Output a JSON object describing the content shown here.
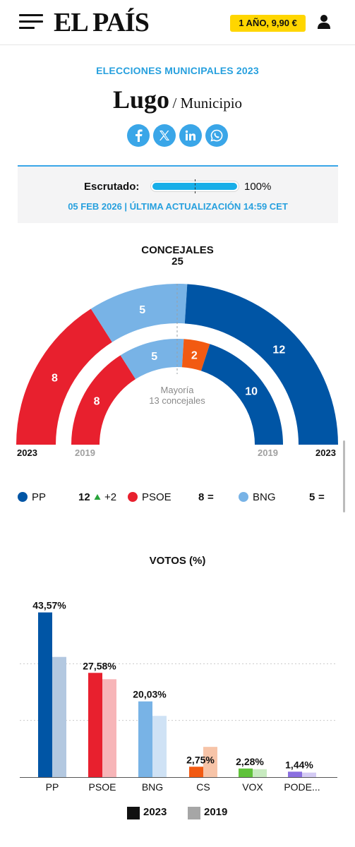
{
  "header": {
    "logo": "EL PAÍS",
    "promo_label": "1 AÑO, 9,90 €",
    "menu_icon": "hamburger-menu-icon",
    "user_icon": "user-icon"
  },
  "page": {
    "kicker": "ELECCIONES MUNICIPALES 2023",
    "title": "Lugo",
    "subtitle": "/ Municipio",
    "share": [
      "facebook-icon",
      "x-icon",
      "linkedin-icon",
      "whatsapp-icon"
    ]
  },
  "scrutiny": {
    "label": "Escrutado:",
    "progress": 1.0,
    "percent_label": "100%",
    "date_label": "05 FEB 2026 | ÚLTIMA ACTUALIZACIÓN 14:59 CET"
  },
  "councillors": {
    "title": "CONCEJALES",
    "total": "25",
    "majority_label": "Mayoría",
    "majority_detail": "13 concejales",
    "year_current": "2023",
    "year_previous": "2019",
    "outer_2023": [
      {
        "party": "PSOE",
        "seats": 8,
        "label": "8",
        "color": "#e8202e"
      },
      {
        "party": "BNG",
        "seats": 5,
        "label": "5",
        "color": "#78b3e6"
      },
      {
        "party": "PP",
        "seats": 12,
        "label": "12",
        "color": "#0055a5"
      }
    ],
    "inner_2019": [
      {
        "party": "PSOE",
        "seats": 8,
        "label": "8",
        "color": "#e8202e"
      },
      {
        "party": "BNG",
        "seats": 5,
        "label": "5",
        "color": "#78b3e6"
      },
      {
        "party": "CS",
        "seats": 2,
        "label": "2",
        "color": "#f25a12"
      },
      {
        "party": "PP",
        "seats": 10,
        "label": "10",
        "color": "#0055a5"
      }
    ],
    "legend": [
      {
        "party": "PP",
        "seats": "12",
        "diff": "+2",
        "diff_icon": "triangle-up-icon",
        "color": "#0055a5"
      },
      {
        "party": "PSOE",
        "seats": "8",
        "diff": "=",
        "color": "#e8202e"
      },
      {
        "party": "BNG",
        "seats": "5",
        "diff": "=",
        "color": "#78b3e6"
      }
    ]
  },
  "chart_data": {
    "type": "bar",
    "title": "VOTOS (%)",
    "categories": [
      "PP",
      "PSOE",
      "BNG",
      "CS",
      "VOX",
      "PODE..."
    ],
    "series": [
      {
        "name": "2023",
        "values": [
          43.57,
          27.58,
          20.03,
          2.75,
          2.28,
          1.44
        ]
      },
      {
        "name": "2019",
        "values": [
          31.8,
          25.9,
          16.2,
          8.0,
          2.1,
          1.2
        ]
      }
    ],
    "data_labels": [
      "43,57%",
      "27,58%",
      "20,03%",
      "2,75%",
      "2,28%",
      "1,44%"
    ],
    "colors_2023": [
      "#0055a5",
      "#e8202e",
      "#78b3e6",
      "#f25a12",
      "#5fc23a",
      "#8a6fe0"
    ],
    "colors_2019": [
      "#b3c8e0",
      "#f7b5b8",
      "#cfe2f5",
      "#f7c4a8",
      "#c8ebc0",
      "#d4cbf4"
    ],
    "ylim": [
      0,
      45
    ],
    "grid": true,
    "legend": [
      "2023",
      "2019"
    ],
    "legend_colors": [
      "#111111",
      "#a6a6a6"
    ]
  }
}
